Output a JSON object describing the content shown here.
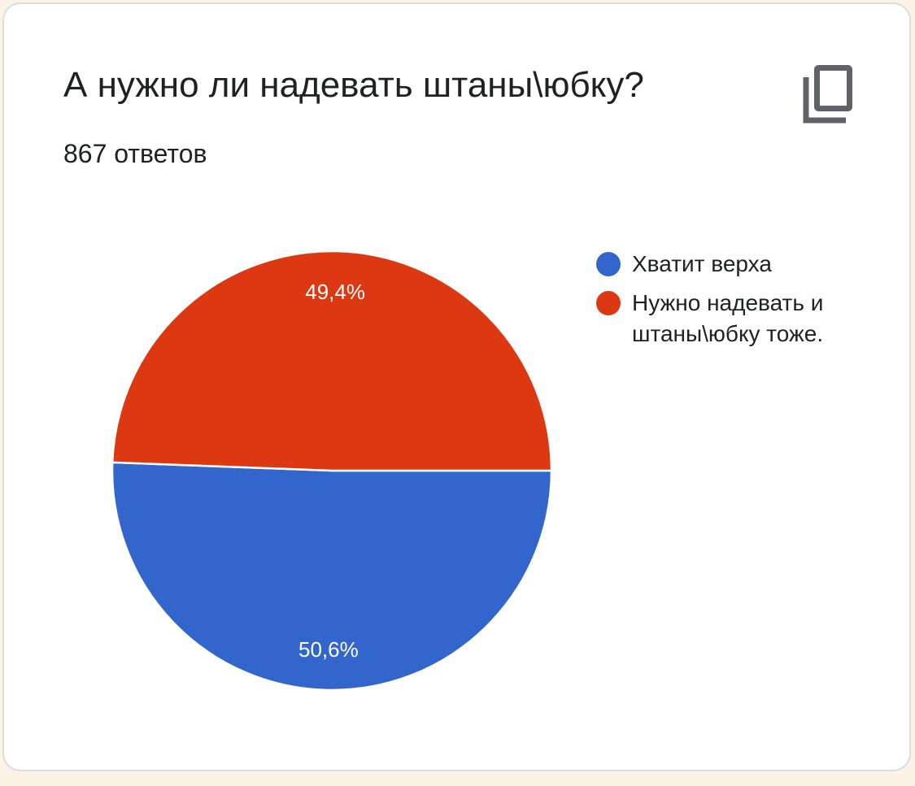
{
  "card": {
    "title": "А нужно ли надевать штаны\\юбку?",
    "responses": "867 ответов"
  },
  "icons": {
    "copy": "copy-icon"
  },
  "chart_data": {
    "type": "pie",
    "series": [
      {
        "name": "Хватит верха",
        "value": 50.6,
        "label": "50,6%",
        "color": "#3366cc"
      },
      {
        "name": "Нужно надевать и штаны\\юбку тоже.",
        "value": 49.4,
        "label": "49,4%",
        "color": "#dc3912"
      }
    ],
    "legend": "right"
  }
}
